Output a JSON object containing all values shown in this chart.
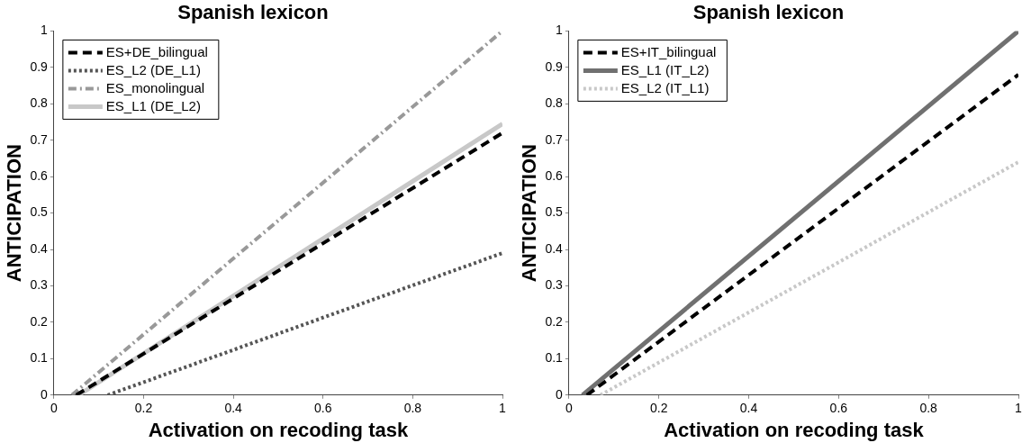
{
  "chart_data": [
    {
      "type": "line",
      "title": "Spanish lexicon",
      "xlabel": "Activation on recoding task",
      "ylabel": "ANTICIPATION",
      "xlim": [
        0,
        1
      ],
      "ylim": [
        0,
        1
      ],
      "xticks": [
        0,
        0.2,
        0.4,
        0.6,
        0.8,
        1
      ],
      "yticks": [
        0,
        0.1,
        0.2,
        0.3,
        0.4,
        0.5,
        0.6,
        0.7,
        0.8,
        0.9,
        1
      ],
      "grid": false,
      "legend": "top left",
      "marker": "none",
      "series": [
        {
          "name": "ES+DE_bilingual",
          "color": "#000000",
          "line_style": "dashed",
          "x": [
            0.05,
            1
          ],
          "values": [
            0,
            0.72
          ]
        },
        {
          "name": "ES_L2 (DE_L1)",
          "color": "#555555",
          "line_style": "dotted",
          "x": [
            0.12,
            1
          ],
          "values": [
            0,
            0.39
          ]
        },
        {
          "name": "ES_monolingual",
          "color": "#999999",
          "line_style": "dashdot",
          "x": [
            0.04,
            1
          ],
          "values": [
            0,
            1
          ]
        },
        {
          "name": "ES_L1 (DE_L2)",
          "color": "#c8c8c8",
          "line_style": "solid",
          "x": [
            0.055,
            1
          ],
          "values": [
            0,
            0.745
          ]
        }
      ]
    },
    {
      "type": "line",
      "title": "Spanish lexicon",
      "xlabel": "Activation on recoding task",
      "ylabel": "ANTICIPATION",
      "xlim": [
        0,
        1
      ],
      "ylim": [
        0,
        1
      ],
      "xticks": [
        0,
        0.2,
        0.4,
        0.6,
        0.8,
        1
      ],
      "yticks": [
        0,
        0.1,
        0.2,
        0.3,
        0.4,
        0.5,
        0.6,
        0.7,
        0.8,
        0.9,
        1
      ],
      "grid": false,
      "legend": "top left",
      "marker": "none",
      "series": [
        {
          "name": "ES+IT_bilingual",
          "color": "#000000",
          "line_style": "dashed",
          "x": [
            0.04,
            1
          ],
          "values": [
            0,
            0.88
          ]
        },
        {
          "name": "ES_L1 (IT_L2)",
          "color": "#707070",
          "line_style": "solid",
          "x": [
            0.03,
            1
          ],
          "values": [
            0,
            1
          ]
        },
        {
          "name": "ES_L2 (IT_L1)",
          "color": "#c8c8c8",
          "line_style": "dotted",
          "x": [
            0.07,
            1
          ],
          "values": [
            0,
            0.64
          ]
        }
      ]
    }
  ]
}
